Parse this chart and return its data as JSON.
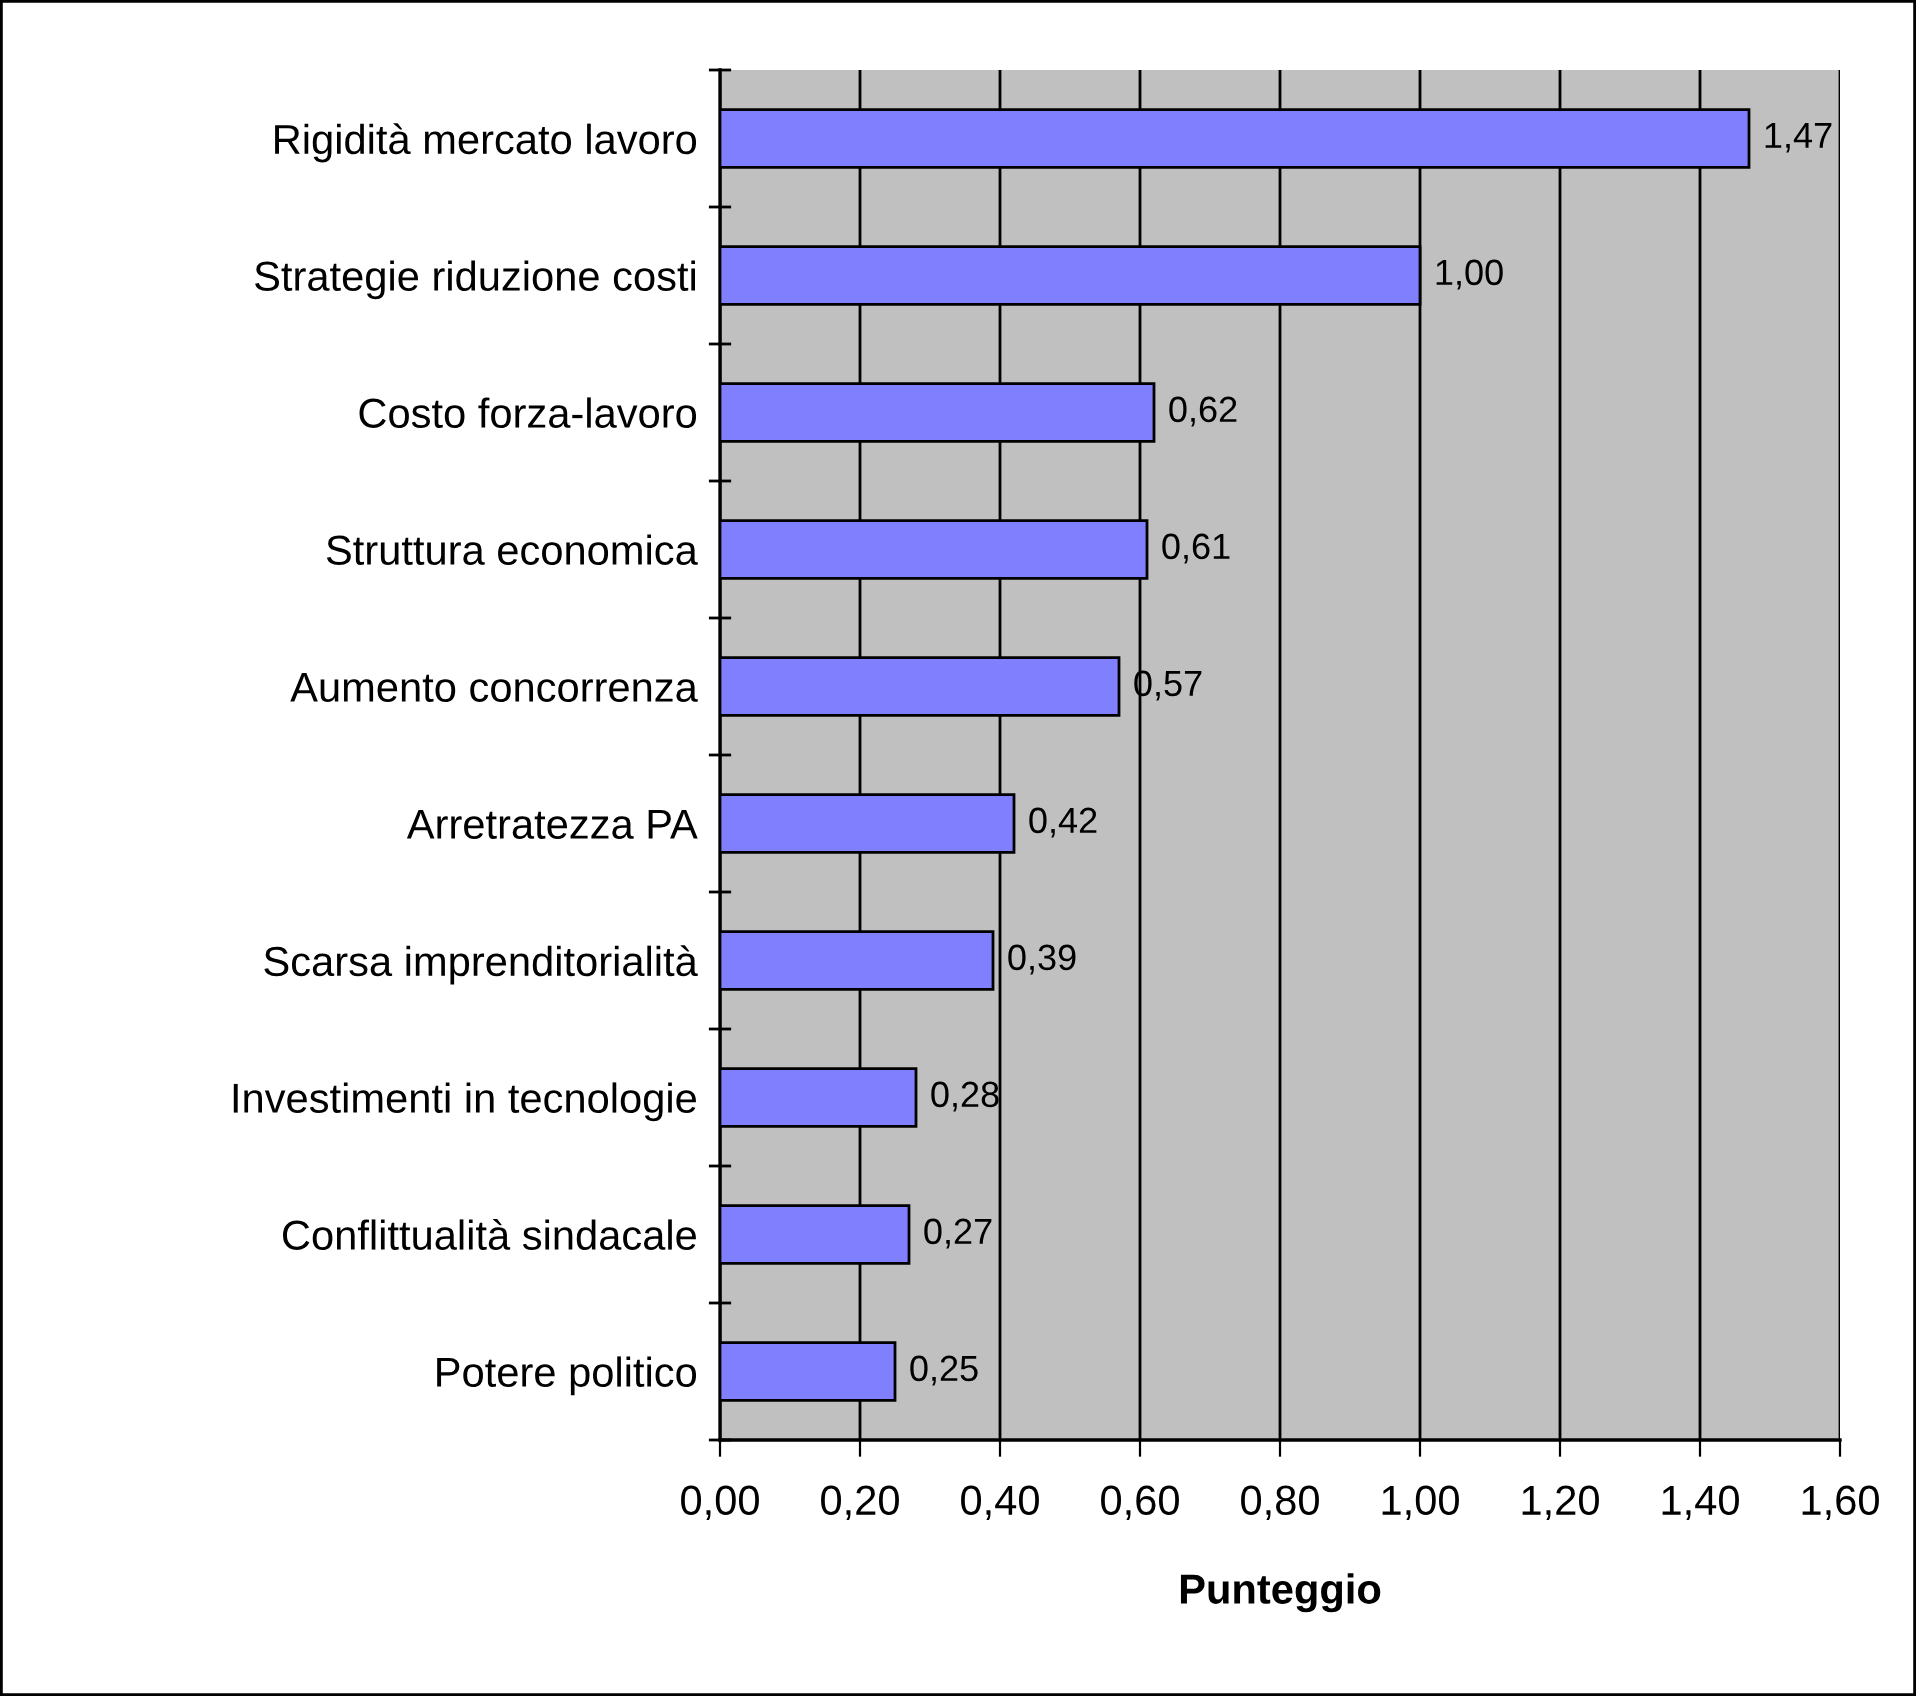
{
  "chart_data": {
    "type": "bar",
    "orientation": "horizontal",
    "xlabel": "Punteggio",
    "categories": [
      "Rigidità mercato lavoro",
      "Strategie riduzione costi",
      "Costo forza-lavoro",
      "Struttura economica",
      "Aumento concorrenza",
      "Arretratezza PA",
      "Scarsa imprenditorialità",
      "Investimenti in tecnologie",
      "Conflittualità sindacale",
      "Potere politico"
    ],
    "values": [
      1.47,
      1.0,
      0.62,
      0.61,
      0.57,
      0.42,
      0.39,
      0.28,
      0.27,
      0.25
    ],
    "value_labels": [
      "1,47",
      "1,00",
      "0,62",
      "0,61",
      "0,57",
      "0,42",
      "0,39",
      "0,28",
      "0,27",
      "0,25"
    ],
    "color": "#8080ff",
    "xlim": [
      0,
      1.6
    ],
    "xticks": [
      {
        "value": 0,
        "label": "0,00"
      },
      {
        "value": 0.2,
        "label": "0,20"
      },
      {
        "value": 0.4,
        "label": "0,40"
      },
      {
        "value": 0.6,
        "label": "0,60"
      },
      {
        "value": 0.8,
        "label": "0,80"
      },
      {
        "value": 1.0,
        "label": "1,00"
      },
      {
        "value": 1.2,
        "label": "1,20"
      },
      {
        "value": 1.4,
        "label": "1,40"
      },
      {
        "value": 1.6,
        "label": "1,60"
      }
    ],
    "grid": "x",
    "legend": false
  }
}
